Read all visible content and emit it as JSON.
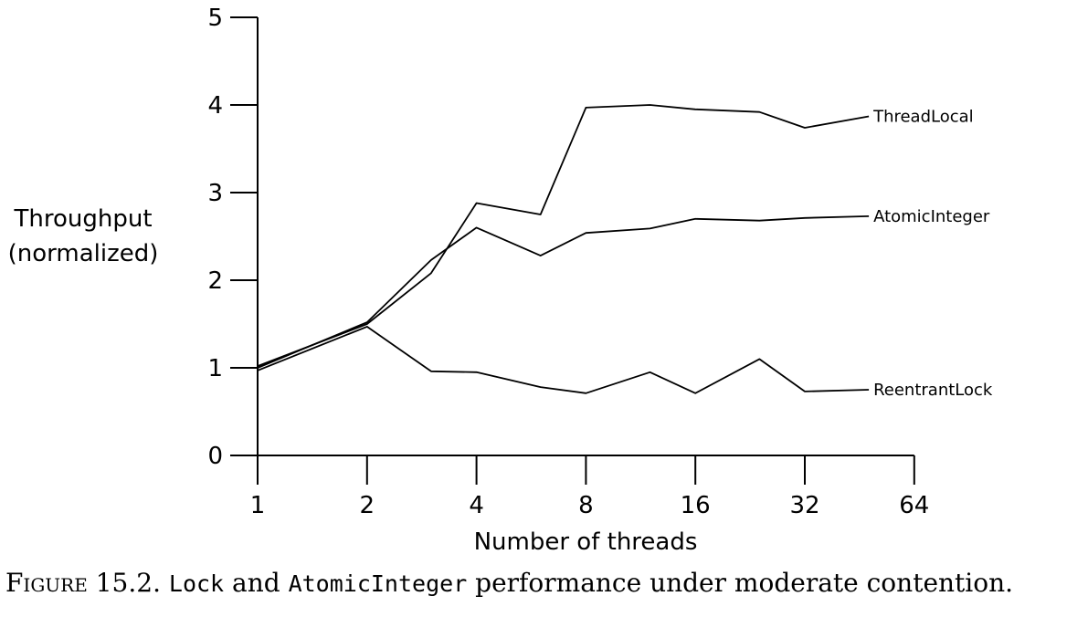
{
  "chart_data": {
    "type": "line",
    "x_scale": "log2",
    "x": [
      1,
      2,
      3,
      4,
      6,
      8,
      12,
      16,
      24,
      32,
      48
    ],
    "xticks": [
      "1",
      "2",
      "4",
      "8",
      "16",
      "32",
      "64"
    ],
    "xtick_values": [
      1,
      2,
      4,
      8,
      16,
      32,
      64
    ],
    "yticks": [
      "0",
      "1",
      "2",
      "3",
      "4",
      "5"
    ],
    "ylim": [
      0,
      5
    ],
    "xlabel": "Number of threads",
    "ylabel": [
      "Throughput",
      "(normalized)"
    ],
    "grid": false,
    "series": [
      {
        "name": "ThreadLocal",
        "values": [
          1.02,
          1.5,
          2.08,
          2.88,
          2.75,
          3.97,
          4.0,
          3.95,
          3.92,
          3.74,
          3.87
        ]
      },
      {
        "name": "AtomicInteger",
        "values": [
          1.0,
          1.52,
          2.23,
          2.6,
          2.28,
          2.54,
          2.59,
          2.7,
          2.68,
          2.71,
          2.73
        ]
      },
      {
        "name": "ReentrantLock",
        "values": [
          0.97,
          1.47,
          0.96,
          0.95,
          0.78,
          0.71,
          0.95,
          0.71,
          1.1,
          0.73,
          0.75
        ]
      }
    ]
  },
  "caption": {
    "figure": "Figure",
    "number": "15.2.",
    "text1": "Lock",
    "text2": "and",
    "text3": "AtomicInteger",
    "text4": "performance under moderate contention."
  }
}
